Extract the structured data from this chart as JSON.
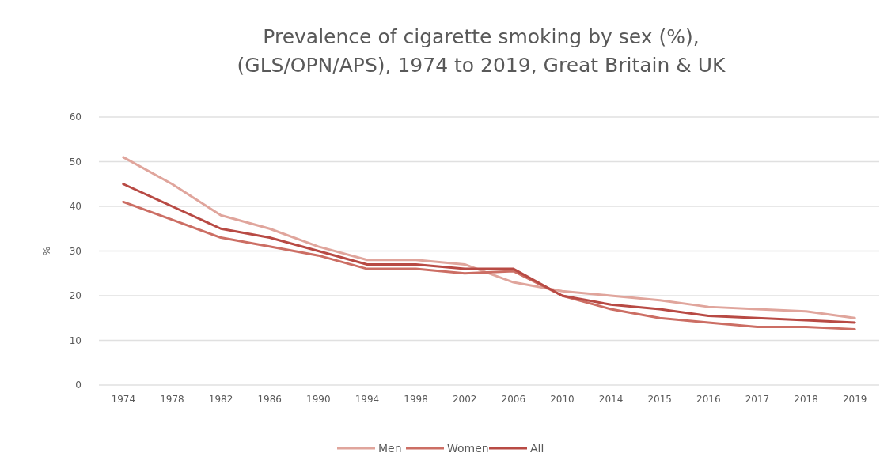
{
  "chart_data": {
    "type": "line",
    "title": "Prevalence of cigarette smoking by sex (%),\n(GLS/OPN/APS), 1974 to 2019, Great Britain & UK",
    "ylabel": "%",
    "categories": [
      "1974",
      "1978",
      "1982",
      "1986",
      "1990",
      "1994",
      "1998",
      "2002",
      "2006",
      "2010",
      "2014",
      "2015",
      "2016",
      "2017",
      "2018",
      "2019"
    ],
    "series": [
      {
        "name": "Men",
        "color": "#e0a59c",
        "values": [
          51,
          45,
          38,
          35,
          31,
          28,
          28,
          27,
          23,
          21,
          20,
          19,
          17.5,
          17,
          16.5,
          15
        ]
      },
      {
        "name": "Women",
        "color": "#cc6e64",
        "values": [
          41,
          37,
          33,
          31,
          29,
          26,
          26,
          25,
          25.5,
          20,
          17,
          15,
          14,
          13,
          13,
          12.5
        ]
      },
      {
        "name": "All",
        "color": "#b84a44",
        "values": [
          45,
          40,
          35,
          33,
          30,
          27,
          27,
          26,
          26,
          20,
          18,
          17,
          15.5,
          15,
          14.5,
          14
        ]
      }
    ],
    "ylim": [
      0,
      60
    ],
    "yticks": [
      0,
      10,
      20,
      30,
      40,
      50,
      60
    ],
    "grid": "y",
    "legend": "bottom",
    "line_style": "solid"
  }
}
